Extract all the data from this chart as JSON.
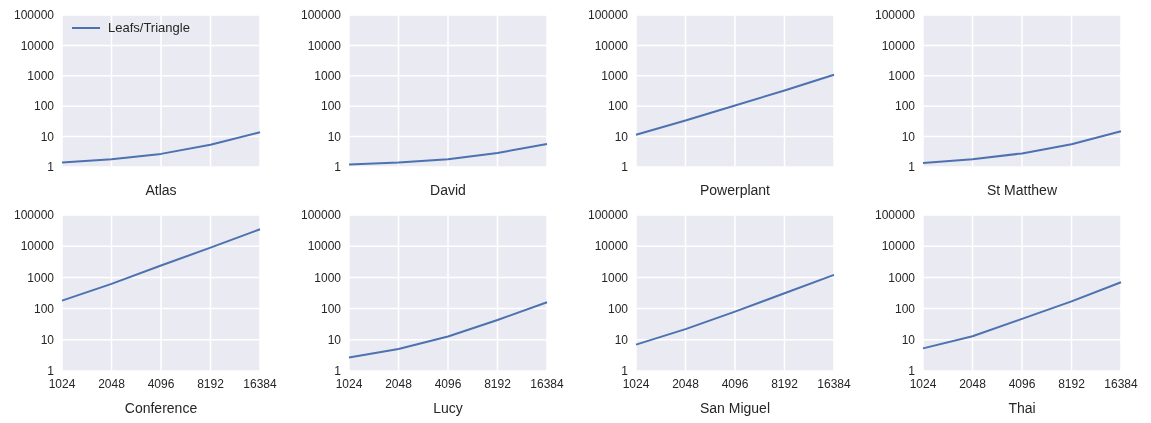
{
  "chart_data": [
    {
      "type": "line",
      "xlabel": "Atlas",
      "categories": [
        "1024",
        "2048",
        "4096",
        "8192",
        "16384"
      ],
      "series": [
        {
          "name": "Leafs/Triangle",
          "color": "#4c72b0",
          "values": [
            1.4,
            1.8,
            2.7,
            5.4,
            14
          ]
        }
      ],
      "log": "y",
      "ylim": [
        1,
        100000
      ],
      "yticks": [
        1,
        10,
        100,
        1000,
        10000,
        100000
      ],
      "grid": true,
      "legend": "top left",
      "tick_labels": "y"
    },
    {
      "type": "line",
      "xlabel": "David",
      "categories": [
        "1024",
        "2048",
        "4096",
        "8192",
        "16384"
      ],
      "series": [
        {
          "color": "#4c72b0",
          "values": [
            1.2,
            1.4,
            1.8,
            2.9,
            5.7
          ]
        }
      ],
      "log": "y",
      "ylim": [
        1,
        100000
      ],
      "yticks": [
        1,
        10,
        100,
        1000,
        10000,
        100000
      ],
      "grid": true,
      "tick_labels": "y"
    },
    {
      "type": "line",
      "xlabel": "Powerplant",
      "categories": [
        "1024",
        "2048",
        "4096",
        "8192",
        "16384"
      ],
      "series": [
        {
          "color": "#4c72b0",
          "values": [
            11.5,
            34,
            105,
            330,
            1080
          ]
        }
      ],
      "log": "y",
      "ylim": [
        1,
        100000
      ],
      "yticks": [
        1,
        10,
        100,
        1000,
        10000,
        100000
      ],
      "grid": true,
      "tick_labels": "y"
    },
    {
      "type": "line",
      "xlabel": "St Matthew",
      "categories": [
        "1024",
        "2048",
        "4096",
        "8192",
        "16384"
      ],
      "series": [
        {
          "color": "#4c72b0",
          "values": [
            1.35,
            1.8,
            2.8,
            5.6,
            15
          ]
        }
      ],
      "log": "y",
      "ylim": [
        1,
        100000
      ],
      "yticks": [
        1,
        10,
        100,
        1000,
        10000,
        100000
      ],
      "grid": true,
      "tick_labels": "y"
    },
    {
      "type": "line",
      "xlabel": "Conference",
      "categories": [
        "1024",
        "2048",
        "4096",
        "8192",
        "16384"
      ],
      "series": [
        {
          "color": "#4c72b0",
          "values": [
            180,
            620,
            2400,
            9000,
            35000
          ]
        }
      ],
      "log": "y",
      "ylim": [
        1,
        100000
      ],
      "yticks": [
        1,
        10,
        100,
        1000,
        10000,
        100000
      ],
      "grid": true
    },
    {
      "type": "line",
      "xlabel": "Lucy",
      "categories": [
        "1024",
        "2048",
        "4096",
        "8192",
        "16384"
      ],
      "series": [
        {
          "color": "#4c72b0",
          "values": [
            2.7,
            5.1,
            12.8,
            43,
            160
          ]
        }
      ],
      "log": "y",
      "ylim": [
        1,
        100000
      ],
      "yticks": [
        1,
        10,
        100,
        1000,
        10000,
        100000
      ],
      "grid": true
    },
    {
      "type": "line",
      "xlabel": "San Miguel",
      "categories": [
        "1024",
        "2048",
        "4096",
        "8192",
        "16384"
      ],
      "series": [
        {
          "color": "#4c72b0",
          "values": [
            7,
            22,
            80,
            310,
            1200
          ]
        }
      ],
      "log": "y",
      "ylim": [
        1,
        100000
      ],
      "yticks": [
        1,
        10,
        100,
        1000,
        10000,
        100000
      ],
      "grid": true
    },
    {
      "type": "line",
      "xlabel": "Thai",
      "categories": [
        "1024",
        "2048",
        "4096",
        "8192",
        "16384"
      ],
      "series": [
        {
          "color": "#4c72b0",
          "values": [
            5.3,
            13,
            47,
            170,
            700
          ]
        }
      ],
      "log": "y",
      "ylim": [
        1,
        100000
      ],
      "yticks": [
        1,
        10,
        100,
        1000,
        10000,
        100000
      ],
      "grid": true
    }
  ]
}
